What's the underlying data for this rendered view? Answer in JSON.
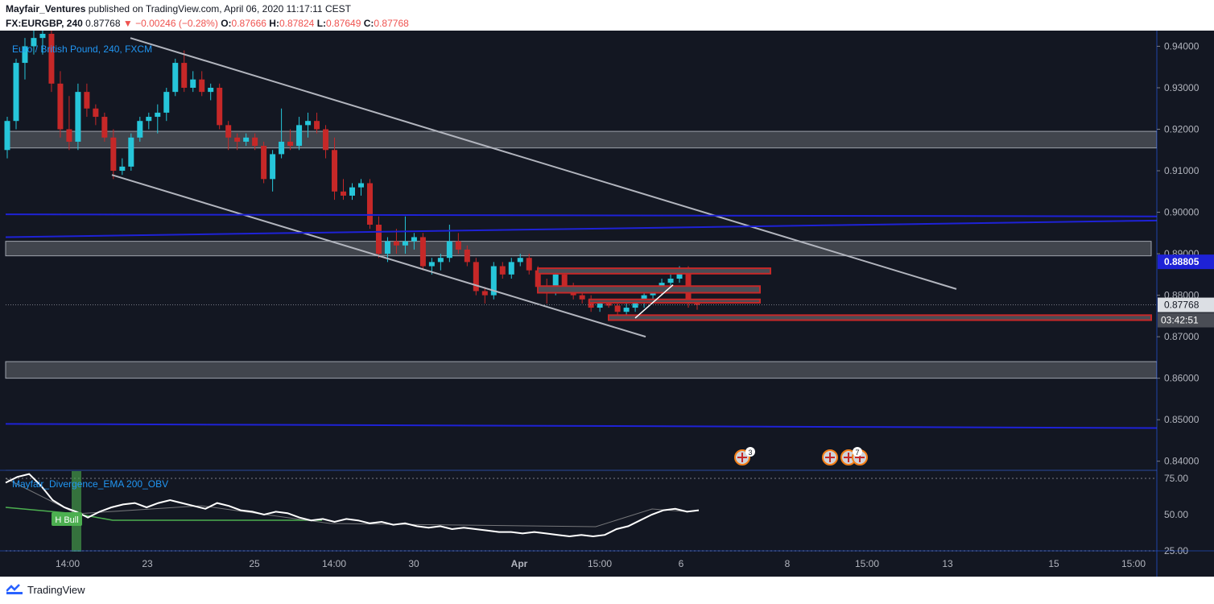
{
  "header": {
    "author": "Mayfair_Ventures",
    "published_text": "published on TradingView.com, April 06, 2020 11:17:11 CEST",
    "symbol": "FX:EURGBP, 240",
    "last": "0.87768",
    "change": "▼ −0.00246 (−0.28%)",
    "o_label": "O:",
    "o_value": "0.87666",
    "h_label": "H:",
    "h_value": "0.87824",
    "l_label": "L:",
    "l_value": "0.87649",
    "c_label": "C:",
    "c_value": "0.87768"
  },
  "pane_title": "Euro / British Pound, 240, FXCM",
  "indicator": {
    "title": "Mayfair_Divergence_EMA 200_OBV",
    "label": "H Bull",
    "ticks": [
      "75.00",
      "50.00",
      "25.00"
    ],
    "range": [
      25,
      75
    ],
    "values": [
      72,
      76,
      78,
      70,
      60,
      55,
      52,
      48,
      52,
      55,
      57,
      58,
      55,
      58,
      60,
      58,
      56,
      54,
      58,
      56,
      53,
      52,
      50,
      52,
      51,
      48,
      46,
      47,
      45,
      47,
      46,
      44,
      45,
      43,
      44,
      42,
      41,
      42,
      40,
      41,
      40,
      39,
      38,
      38,
      37,
      38,
      37,
      36,
      35,
      36,
      35,
      36,
      40,
      42,
      46,
      50,
      53,
      54,
      52,
      53
    ]
  },
  "price_axis": {
    "ticks": [
      "0.94000",
      "0.93000",
      "0.92000",
      "0.91000",
      "0.90000",
      "0.89000",
      "0.88000",
      "0.87000",
      "0.86000",
      "0.85000",
      "0.84000"
    ],
    "range": [
      0.838,
      0.943
    ],
    "blue_label": "0.88805",
    "current_label": "0.87768",
    "countdown": "03:42:51"
  },
  "time_axis": {
    "labels": [
      "14:00",
      "23",
      "25",
      "14:00",
      "30",
      "Apr",
      "15:00",
      "6",
      "8",
      "15:00",
      "13",
      "15",
      "15:00"
    ]
  },
  "events": {
    "badge_a": "3",
    "badge_b": "7"
  },
  "footer": {
    "brand": "TradingView"
  },
  "colors": {
    "bg": "#131722",
    "up": "#26c6da",
    "down": "#c62828",
    "blue_line": "#1e22d6",
    "zone": "#4a4d55",
    "red_box": "#c62828"
  },
  "chart_data": {
    "type": "candlestick",
    "symbol": "FX:EURGBP",
    "interval": "240",
    "ylim": [
      0.838,
      0.943
    ],
    "candles": [
      [
        0.915,
        0.923,
        0.913,
        0.922
      ],
      [
        0.922,
        0.937,
        0.92,
        0.936
      ],
      [
        0.936,
        0.942,
        0.932,
        0.94
      ],
      [
        0.94,
        0.944,
        0.938,
        0.942
      ],
      [
        0.942,
        0.945,
        0.938,
        0.943
      ],
      [
        0.943,
        0.944,
        0.929,
        0.931
      ],
      [
        0.931,
        0.934,
        0.918,
        0.92
      ],
      [
        0.92,
        0.928,
        0.915,
        0.917
      ],
      [
        0.917,
        0.931,
        0.915,
        0.929
      ],
      [
        0.929,
        0.931,
        0.923,
        0.925
      ],
      [
        0.925,
        0.926,
        0.921,
        0.923
      ],
      [
        0.923,
        0.924,
        0.917,
        0.918
      ],
      [
        0.918,
        0.92,
        0.908,
        0.91
      ],
      [
        0.91,
        0.913,
        0.909,
        0.911
      ],
      [
        0.911,
        0.919,
        0.91,
        0.918
      ],
      [
        0.918,
        0.923,
        0.917,
        0.922
      ],
      [
        0.922,
        0.924,
        0.92,
        0.923
      ],
      [
        0.923,
        0.926,
        0.919,
        0.924
      ],
      [
        0.924,
        0.93,
        0.922,
        0.929
      ],
      [
        0.929,
        0.937,
        0.928,
        0.936
      ],
      [
        0.936,
        0.939,
        0.929,
        0.93
      ],
      [
        0.93,
        0.934,
        0.929,
        0.932
      ],
      [
        0.932,
        0.934,
        0.928,
        0.929
      ],
      [
        0.929,
        0.931,
        0.927,
        0.93
      ],
      [
        0.93,
        0.931,
        0.92,
        0.921
      ],
      [
        0.921,
        0.922,
        0.915,
        0.918
      ],
      [
        0.918,
        0.919,
        0.915,
        0.917
      ],
      [
        0.917,
        0.919,
        0.916,
        0.918
      ],
      [
        0.918,
        0.919,
        0.915,
        0.916
      ],
      [
        0.916,
        0.917,
        0.907,
        0.908
      ],
      [
        0.908,
        0.915,
        0.905,
        0.914
      ],
      [
        0.914,
        0.925,
        0.913,
        0.917
      ],
      [
        0.917,
        0.92,
        0.915,
        0.916
      ],
      [
        0.916,
        0.923,
        0.915,
        0.921
      ],
      [
        0.921,
        0.924,
        0.918,
        0.922
      ],
      [
        0.922,
        0.924,
        0.919,
        0.92
      ],
      [
        0.92,
        0.921,
        0.913,
        0.915
      ],
      [
        0.915,
        0.918,
        0.903,
        0.905
      ],
      [
        0.905,
        0.908,
        0.903,
        0.904
      ],
      [
        0.904,
        0.907,
        0.903,
        0.906
      ],
      [
        0.906,
        0.908,
        0.904,
        0.907
      ],
      [
        0.907,
        0.908,
        0.896,
        0.897
      ],
      [
        0.897,
        0.899,
        0.889,
        0.89
      ],
      [
        0.89,
        0.894,
        0.888,
        0.893
      ],
      [
        0.893,
        0.896,
        0.89,
        0.892
      ],
      [
        0.892,
        0.899,
        0.89,
        0.893
      ],
      [
        0.893,
        0.895,
        0.891,
        0.894
      ],
      [
        0.894,
        0.895,
        0.886,
        0.887
      ],
      [
        0.887,
        0.889,
        0.885,
        0.888
      ],
      [
        0.888,
        0.89,
        0.886,
        0.889
      ],
      [
        0.889,
        0.897,
        0.888,
        0.893
      ],
      [
        0.893,
        0.895,
        0.89,
        0.891
      ],
      [
        0.891,
        0.892,
        0.887,
        0.888
      ],
      [
        0.888,
        0.889,
        0.88,
        0.881
      ],
      [
        0.881,
        0.882,
        0.878,
        0.88
      ],
      [
        0.88,
        0.888,
        0.879,
        0.887
      ],
      [
        0.887,
        0.888,
        0.884,
        0.885
      ],
      [
        0.885,
        0.889,
        0.884,
        0.888
      ],
      [
        0.888,
        0.89,
        0.887,
        0.889
      ],
      [
        0.889,
        0.89,
        0.885,
        0.886
      ],
      [
        0.886,
        0.887,
        0.881,
        0.882
      ],
      [
        0.882,
        0.884,
        0.878,
        0.881
      ],
      [
        0.881,
        0.886,
        0.88,
        0.885
      ],
      [
        0.885,
        0.886,
        0.881,
        0.882
      ],
      [
        0.882,
        0.883,
        0.879,
        0.88
      ],
      [
        0.88,
        0.882,
        0.878,
        0.879
      ],
      [
        0.879,
        0.88,
        0.876,
        0.877
      ],
      [
        0.877,
        0.879,
        0.876,
        0.878
      ],
      [
        0.878,
        0.879,
        0.877,
        0.8775
      ],
      [
        0.8775,
        0.878,
        0.875,
        0.876
      ],
      [
        0.876,
        0.878,
        0.875,
        0.877
      ],
      [
        0.877,
        0.879,
        0.876,
        0.8785
      ],
      [
        0.8785,
        0.881,
        0.877,
        0.88
      ],
      [
        0.88,
        0.882,
        0.879,
        0.881
      ],
      [
        0.881,
        0.884,
        0.88,
        0.883
      ],
      [
        0.883,
        0.885,
        0.882,
        0.884
      ],
      [
        0.884,
        0.887,
        0.883,
        0.886
      ],
      [
        0.886,
        0.887,
        0.877,
        0.878
      ],
      [
        0.878,
        0.8782,
        0.8765,
        0.8777
      ]
    ]
  }
}
